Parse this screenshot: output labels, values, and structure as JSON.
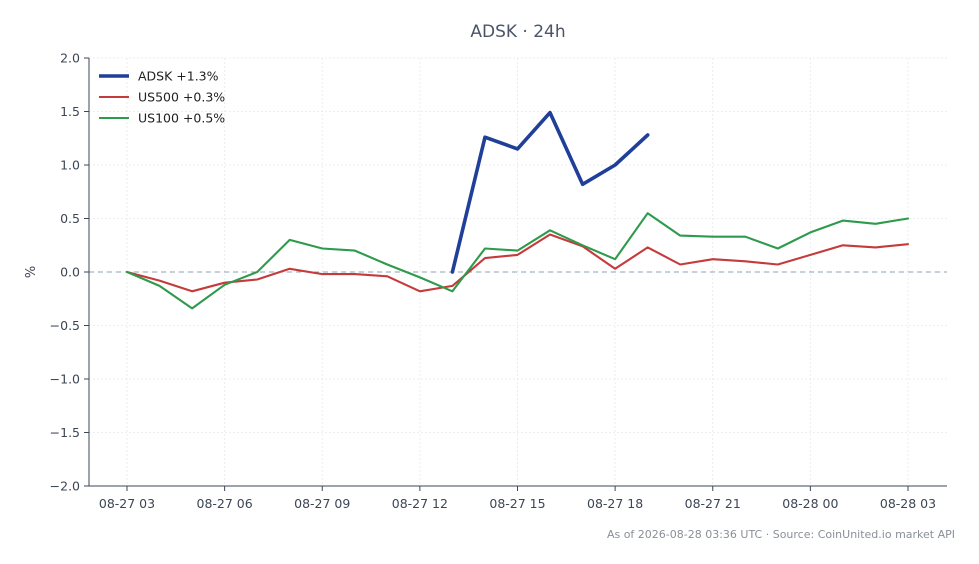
{
  "chart_data": {
    "type": "line",
    "title": "ADSK · 24h",
    "xlabel": "",
    "ylabel": "%",
    "ylim": [
      -2.0,
      2.0
    ],
    "yticks": [
      2.0,
      1.5,
      1.0,
      0.5,
      0.0,
      -0.5,
      -1.0,
      -1.5,
      -2.0
    ],
    "ytick_labels": [
      "2.0",
      "1.5",
      "1.0",
      "0.5",
      "0.0",
      "−0.5",
      "−1.0",
      "−1.5",
      "−2.0"
    ],
    "x_range": [
      "08-27 03:00",
      "08-28 03:00"
    ],
    "xticks": [
      "08-27 03",
      "08-27 06",
      "08-27 09",
      "08-27 12",
      "08-27 15",
      "08-27 18",
      "08-27 21",
      "08-28 00",
      "08-28 03"
    ],
    "grid": true,
    "legend_position": "top-left",
    "zero_line": true,
    "series": [
      {
        "name": "ADSK +1.3%",
        "color": "#1f3f99",
        "x": [
          "08-27 13:00",
          "08-27 14:00",
          "08-27 15:00",
          "08-27 16:00",
          "08-27 17:00",
          "08-27 18:00",
          "08-27 19:00"
        ],
        "values": [
          0.0,
          1.26,
          1.15,
          1.49,
          0.82,
          1.0,
          1.28
        ]
      },
      {
        "name": "US500 +0.3%",
        "color": "#c53a3a",
        "x": [
          "08-27 03:00",
          "08-27 04:00",
          "08-27 05:00",
          "08-27 06:00",
          "08-27 07:00",
          "08-27 08:00",
          "08-27 09:00",
          "08-27 10:00",
          "08-27 11:00",
          "08-27 12:00",
          "08-27 13:00",
          "08-27 14:00",
          "08-27 15:00",
          "08-27 16:00",
          "08-27 17:00",
          "08-27 18:00",
          "08-27 19:00",
          "08-27 20:00",
          "08-27 21:00",
          "08-27 22:00",
          "08-27 23:00",
          "08-28 00:00",
          "08-28 01:00",
          "08-28 02:00",
          "08-28 03:00"
        ],
        "values": [
          0.0,
          -0.08,
          -0.18,
          -0.1,
          -0.07,
          0.03,
          -0.02,
          -0.02,
          -0.04,
          -0.18,
          -0.13,
          0.13,
          0.16,
          0.35,
          0.24,
          0.03,
          0.23,
          0.07,
          0.12,
          0.1,
          0.07,
          0.16,
          0.25,
          0.23,
          0.26
        ]
      },
      {
        "name": "US100 +0.5%",
        "color": "#2e9a4c",
        "x": [
          "08-27 03:00",
          "08-27 04:00",
          "08-27 05:00",
          "08-27 06:00",
          "08-27 07:00",
          "08-27 08:00",
          "08-27 09:00",
          "08-27 10:00",
          "08-27 11:00",
          "08-27 12:00",
          "08-27 13:00",
          "08-27 14:00",
          "08-27 15:00",
          "08-27 16:00",
          "08-27 17:00",
          "08-27 18:00",
          "08-27 19:00",
          "08-27 20:00",
          "08-27 21:00",
          "08-27 22:00",
          "08-27 23:00",
          "08-28 00:00",
          "08-28 01:00",
          "08-28 02:00",
          "08-28 03:00"
        ],
        "values": [
          0.0,
          -0.13,
          -0.34,
          -0.12,
          0.0,
          0.3,
          0.22,
          0.2,
          0.07,
          -0.05,
          -0.18,
          0.22,
          0.2,
          0.39,
          0.25,
          0.12,
          0.55,
          0.34,
          0.33,
          0.33,
          0.22,
          0.37,
          0.48,
          0.45,
          0.5
        ]
      }
    ]
  },
  "footer": "As of 2026-08-28 03:36 UTC · Source: CoinUnited.io market API"
}
